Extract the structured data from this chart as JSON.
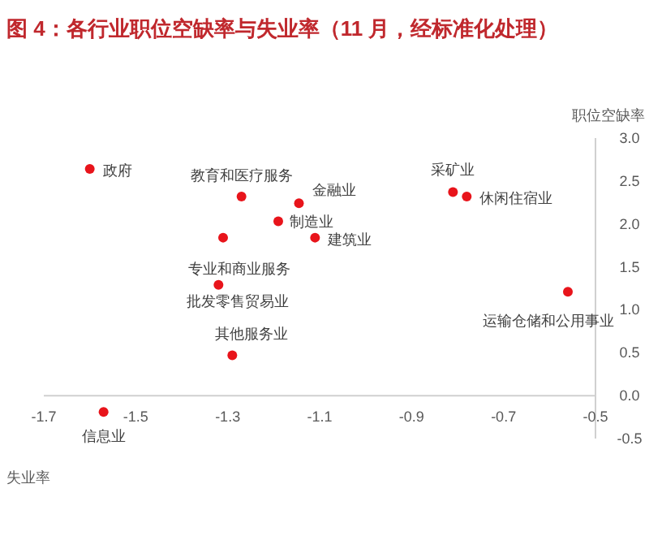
{
  "chart_data": {
    "type": "scatter",
    "title": "图 4：各行业职位空缺率与失业率（11 月，经标准化处理）",
    "xlabel": "失业率",
    "ylabel": "职位空缺率",
    "series": [
      {
        "color": "#e8141b",
        "x": [
          -1.6,
          -1.27,
          -1.145,
          -1.19,
          -1.31,
          -1.11,
          -1.32,
          -1.29,
          -1.57,
          -0.81,
          -0.78,
          -0.56
        ],
        "values": [
          2.64,
          2.32,
          2.24,
          2.03,
          1.84,
          1.84,
          1.29,
          0.47,
          -0.19,
          2.37,
          2.32,
          1.21
        ]
      }
    ],
    "annotations": [
      {
        "text": "政府",
        "x": -1.6,
        "y": 2.64
      },
      {
        "text": "教育和医疗服务",
        "x": -1.27,
        "y": 2.32
      },
      {
        "text": "金融业",
        "x": -1.145,
        "y": 2.24
      },
      {
        "text": "制造业",
        "x": -1.19,
        "y": 2.03
      },
      {
        "text": "专业和商业服务",
        "x": -1.31,
        "y": 1.84
      },
      {
        "text": "建筑业",
        "x": -1.11,
        "y": 1.84
      },
      {
        "text": "批发零售贸易业",
        "x": -1.32,
        "y": 1.29
      },
      {
        "text": "其他服务业",
        "x": -1.29,
        "y": 0.47
      },
      {
        "text": "信息业",
        "x": -1.57,
        "y": -0.19
      },
      {
        "text": "采矿业",
        "x": -0.81,
        "y": 2.37
      },
      {
        "text": "休闲住宿业",
        "x": -0.78,
        "y": 2.32
      },
      {
        "text": "运输仓储和公用事业",
        "x": -0.56,
        "y": 1.21
      }
    ],
    "xlim": [
      -1.7,
      -0.5
    ],
    "ylim": [
      -0.5,
      3.0
    ],
    "xticks": [
      -1.7,
      -1.5,
      -1.3,
      -1.1,
      -0.9,
      -0.7,
      -0.5
    ],
    "yticks": [
      -0.5,
      {
        "value": 0,
        "label": "0.0"
      },
      0.5,
      {
        "value": 1,
        "label": "1.0"
      },
      1.5,
      {
        "value": 2,
        "label": "2.0"
      },
      2.5,
      {
        "value": 3,
        "label": "3.0"
      }
    ],
    "marker": "circle",
    "grid": false
  }
}
